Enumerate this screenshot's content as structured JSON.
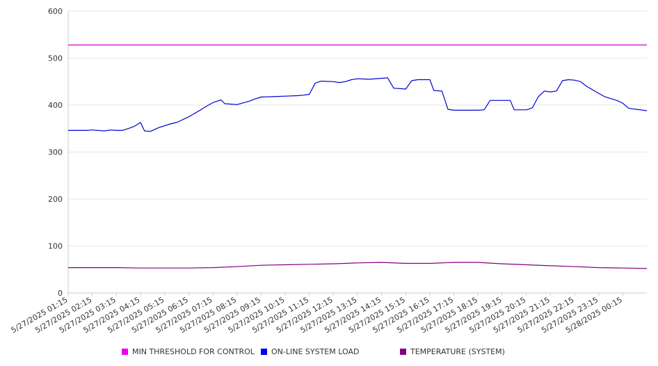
{
  "chart_data": {
    "type": "line",
    "title": "",
    "xlabel": "",
    "ylabel": "",
    "ylim": [
      0,
      600
    ],
    "yticks": [
      "0",
      "100",
      "200",
      "300",
      "400",
      "500",
      "600"
    ],
    "x_tick_labels": [
      "5/27/2025 01:15",
      "5/27/2025 02:15",
      "5/27/2025 03:15",
      "5/27/2025 04:15",
      "5/27/2025 05:15",
      "5/27/2025 06:15",
      "5/27/2025 07:15",
      "5/27/2025 08:15",
      "5/27/2025 09:15",
      "5/27/2025 10:15",
      "5/27/2025 11:15",
      "5/27/2025 12:15",
      "5/27/2025 13:15",
      "5/27/2025 14:15",
      "5/27/2025 15:15",
      "5/27/2025 16:15",
      "5/27/2025 17:15",
      "5/27/2025 18:15",
      "5/27/2025 19:15",
      "5/27/2025 20:15",
      "5/27/2025 21:15",
      "5/27/2025 22:15",
      "5/27/2025 23:15",
      "5/28/2025 00:15"
    ],
    "x_start": "5/27/2025 01:15",
    "x_end": "5/28/2025 01:15",
    "grid": true,
    "legend_position": "bottom",
    "series": [
      {
        "name": "MIN THRESHOLD FOR CONTROL",
        "color": "#cc00cc",
        "points": [
          [
            "5/27/2025 01:15",
            528
          ],
          [
            "5/28/2025 01:15",
            528
          ]
        ]
      },
      {
        "name": "ON-LINE SYSTEM LOAD",
        "color": "#0000cc",
        "points": [
          [
            "5/27/2025 01:15",
            346
          ],
          [
            "5/27/2025 02:00",
            346
          ],
          [
            "5/27/2025 02:15",
            347
          ],
          [
            "5/27/2025 02:45",
            345
          ],
          [
            "5/27/2025 03:00",
            347
          ],
          [
            "5/27/2025 03:15",
            346
          ],
          [
            "5/27/2025 03:30",
            346
          ],
          [
            "5/27/2025 03:45",
            350
          ],
          [
            "5/27/2025 04:00",
            355
          ],
          [
            "5/27/2025 04:15",
            363
          ],
          [
            "5/27/2025 04:25",
            345
          ],
          [
            "5/27/2025 04:40",
            344
          ],
          [
            "5/27/2025 05:00",
            352
          ],
          [
            "5/27/2025 05:30",
            360
          ],
          [
            "5/27/2025 05:45",
            363
          ],
          [
            "5/27/2025 06:15",
            375
          ],
          [
            "5/27/2025 06:45",
            390
          ],
          [
            "5/27/2025 07:00",
            398
          ],
          [
            "5/27/2025 07:15",
            405
          ],
          [
            "5/27/2025 07:35",
            411
          ],
          [
            "5/27/2025 07:45",
            403
          ],
          [
            "5/27/2025 08:15",
            401
          ],
          [
            "5/27/2025 08:45",
            408
          ],
          [
            "5/27/2025 09:00",
            413
          ],
          [
            "5/27/2025 09:15",
            417
          ],
          [
            "5/27/2025 09:45",
            418
          ],
          [
            "5/27/2025 10:15",
            419
          ],
          [
            "5/27/2025 10:45",
            420
          ],
          [
            "5/27/2025 11:00",
            421
          ],
          [
            "5/27/2025 11:15",
            423
          ],
          [
            "5/27/2025 11:30",
            447
          ],
          [
            "5/27/2025 11:45",
            451
          ],
          [
            "5/27/2025 12:15",
            450
          ],
          [
            "5/27/2025 12:30",
            448
          ],
          [
            "5/27/2025 12:45",
            450
          ],
          [
            "5/27/2025 13:00",
            454
          ],
          [
            "5/27/2025 13:15",
            456
          ],
          [
            "5/27/2025 13:45",
            455
          ],
          [
            "5/27/2025 14:15",
            457
          ],
          [
            "5/27/2025 14:30",
            458
          ],
          [
            "5/27/2025 14:45",
            436
          ],
          [
            "5/27/2025 15:15",
            434
          ],
          [
            "5/27/2025 15:30",
            452
          ],
          [
            "5/27/2025 15:45",
            454
          ],
          [
            "5/27/2025 16:15",
            454
          ],
          [
            "5/27/2025 16:25",
            431
          ],
          [
            "5/27/2025 16:45",
            430
          ],
          [
            "5/27/2025 17:00",
            391
          ],
          [
            "5/27/2025 17:15",
            389
          ],
          [
            "5/27/2025 17:45",
            389
          ],
          [
            "5/27/2025 18:15",
            389
          ],
          [
            "5/27/2025 18:30",
            390
          ],
          [
            "5/27/2025 18:45",
            410
          ],
          [
            "5/27/2025 19:15",
            410
          ],
          [
            "5/27/2025 19:35",
            410
          ],
          [
            "5/27/2025 19:45",
            390
          ],
          [
            "5/27/2025 20:15",
            390
          ],
          [
            "5/27/2025 20:30",
            394
          ],
          [
            "5/27/2025 20:45",
            418
          ],
          [
            "5/27/2025 21:00",
            430
          ],
          [
            "5/27/2025 21:15",
            428
          ],
          [
            "5/27/2025 21:30",
            430
          ],
          [
            "5/27/2025 21:45",
            452
          ],
          [
            "5/27/2025 22:00",
            454
          ],
          [
            "5/27/2025 22:15",
            453
          ],
          [
            "5/27/2025 22:30",
            450
          ],
          [
            "5/27/2025 22:45",
            440
          ],
          [
            "5/27/2025 23:15",
            425
          ],
          [
            "5/27/2025 23:30",
            418
          ],
          [
            "5/28/2025 00:00",
            410
          ],
          [
            "5/28/2025 00:15",
            404
          ],
          [
            "5/28/2025 00:30",
            393
          ],
          [
            "5/28/2025 01:15",
            388
          ]
        ]
      },
      {
        "name": "TEMPERATURE (SYSTEM)",
        "color": "#800080",
        "points": [
          [
            "5/27/2025 01:15",
            54
          ],
          [
            "5/27/2025 03:15",
            54
          ],
          [
            "5/27/2025 04:15",
            53
          ],
          [
            "5/27/2025 06:15",
            53
          ],
          [
            "5/27/2025 07:15",
            54
          ],
          [
            "5/27/2025 08:15",
            56
          ],
          [
            "5/27/2025 09:15",
            59
          ],
          [
            "5/27/2025 10:15",
            60
          ],
          [
            "5/27/2025 11:15",
            61
          ],
          [
            "5/27/2025 12:15",
            62
          ],
          [
            "5/27/2025 13:15",
            64
          ],
          [
            "5/27/2025 14:15",
            65
          ],
          [
            "5/27/2025 15:15",
            63
          ],
          [
            "5/27/2025 16:15",
            63
          ],
          [
            "5/27/2025 17:15",
            65
          ],
          [
            "5/27/2025 18:15",
            65
          ],
          [
            "5/27/2025 19:15",
            62
          ],
          [
            "5/27/2025 20:15",
            60
          ],
          [
            "5/27/2025 21:15",
            58
          ],
          [
            "5/27/2025 22:15",
            56
          ],
          [
            "5/27/2025 23:15",
            54
          ],
          [
            "5/28/2025 00:15",
            53
          ],
          [
            "5/28/2025 01:15",
            52
          ]
        ]
      }
    ]
  }
}
